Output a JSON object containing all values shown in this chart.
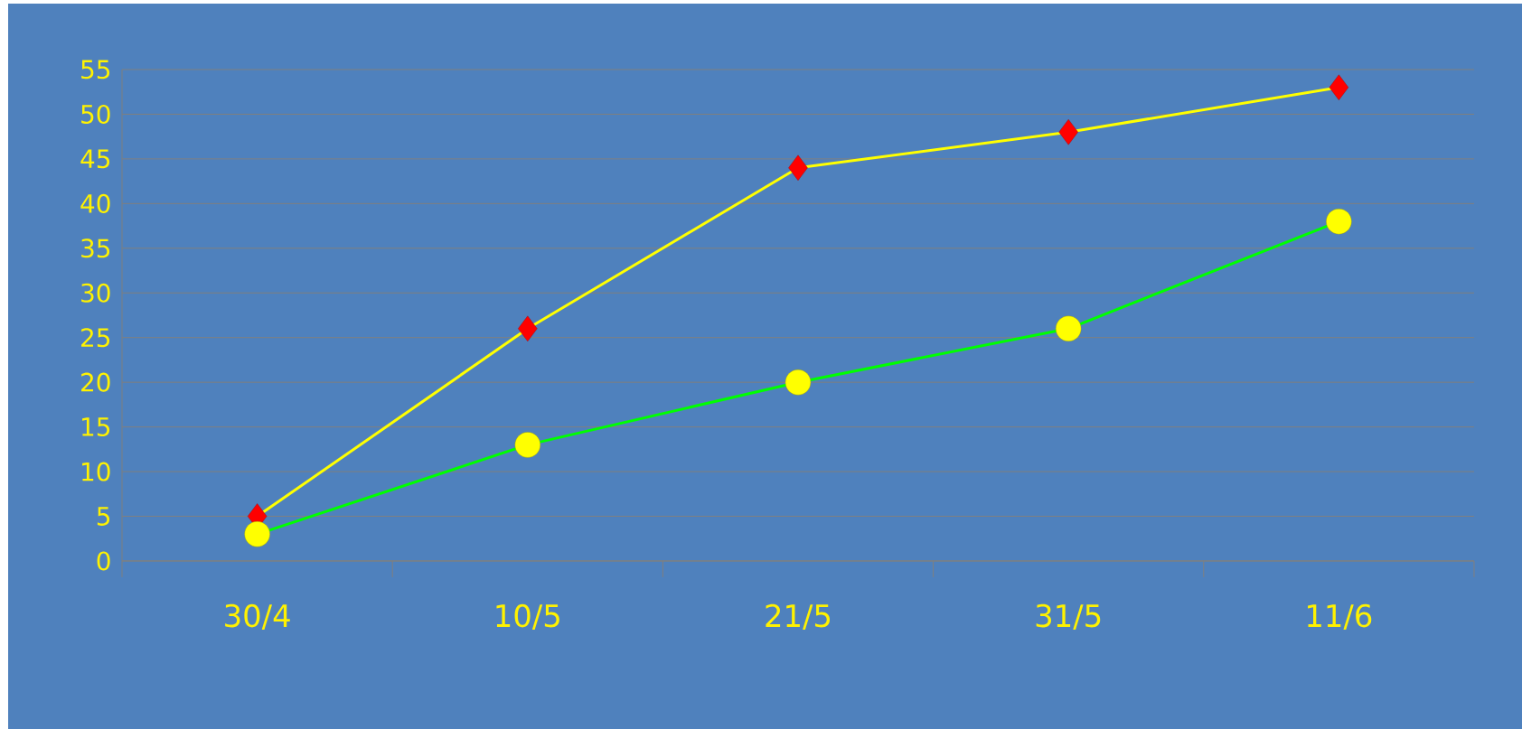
{
  "chart_data": {
    "type": "line",
    "categories": [
      "30/4",
      "10/5",
      "21/5",
      "31/5",
      "11/6"
    ],
    "series": [
      {
        "color": "#ffff00",
        "marker": "diamond",
        "colors": [
          "#ff0000",
          "#ff0000",
          "#ff0000",
          "#ff0000",
          "#ff0000"
        ],
        "values": [
          5,
          26,
          44,
          48,
          53
        ]
      },
      {
        "color": "#00ff00",
        "marker": "circle",
        "colors": [
          "#ffff00",
          "#ffff00",
          "#ffff00",
          "#ffff00",
          "#ffff00"
        ],
        "values": [
          3,
          13,
          20,
          26,
          38
        ]
      }
    ],
    "ylim": [
      0,
      55
    ],
    "yticks": [
      0,
      5,
      10,
      15,
      20,
      25,
      30,
      35,
      40,
      45,
      50,
      55
    ],
    "grid": "y"
  }
}
